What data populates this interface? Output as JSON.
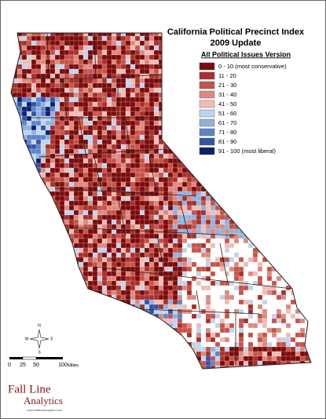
{
  "title": "California Political Precinct Index",
  "subtitle": "2009 Update",
  "legend": {
    "heading": "All Political Issues Version",
    "items": [
      {
        "label": "0 - 10 (most conservative)",
        "color": "#7a0a0a"
      },
      {
        "label": "11 - 20",
        "color": "#a8302a"
      },
      {
        "label": "21 - 30",
        "color": "#c65349"
      },
      {
        "label": "31 - 40",
        "color": "#dc8980"
      },
      {
        "label": "41 - 50",
        "color": "#efbcb6"
      },
      {
        "label": "51 - 60",
        "color": "#bed4ef"
      },
      {
        "label": "61 - 70",
        "color": "#90b1df"
      },
      {
        "label": "71 - 80",
        "color": "#5f83c6"
      },
      {
        "label": "81 - 90",
        "color": "#3354a6"
      },
      {
        "label": "91 - 100 (most liberal)",
        "color": "#0b1f6e"
      }
    ]
  },
  "compass": {
    "north": "N",
    "south": "S",
    "east": "E",
    "west": "W"
  },
  "scale": {
    "ticks": [
      "0",
      "25",
      "50",
      "100"
    ],
    "unit": "Miles"
  },
  "logo": {
    "line1": "Fall Line",
    "line2": "Analytics",
    "url": "www.falllineanalytics.com"
  }
}
